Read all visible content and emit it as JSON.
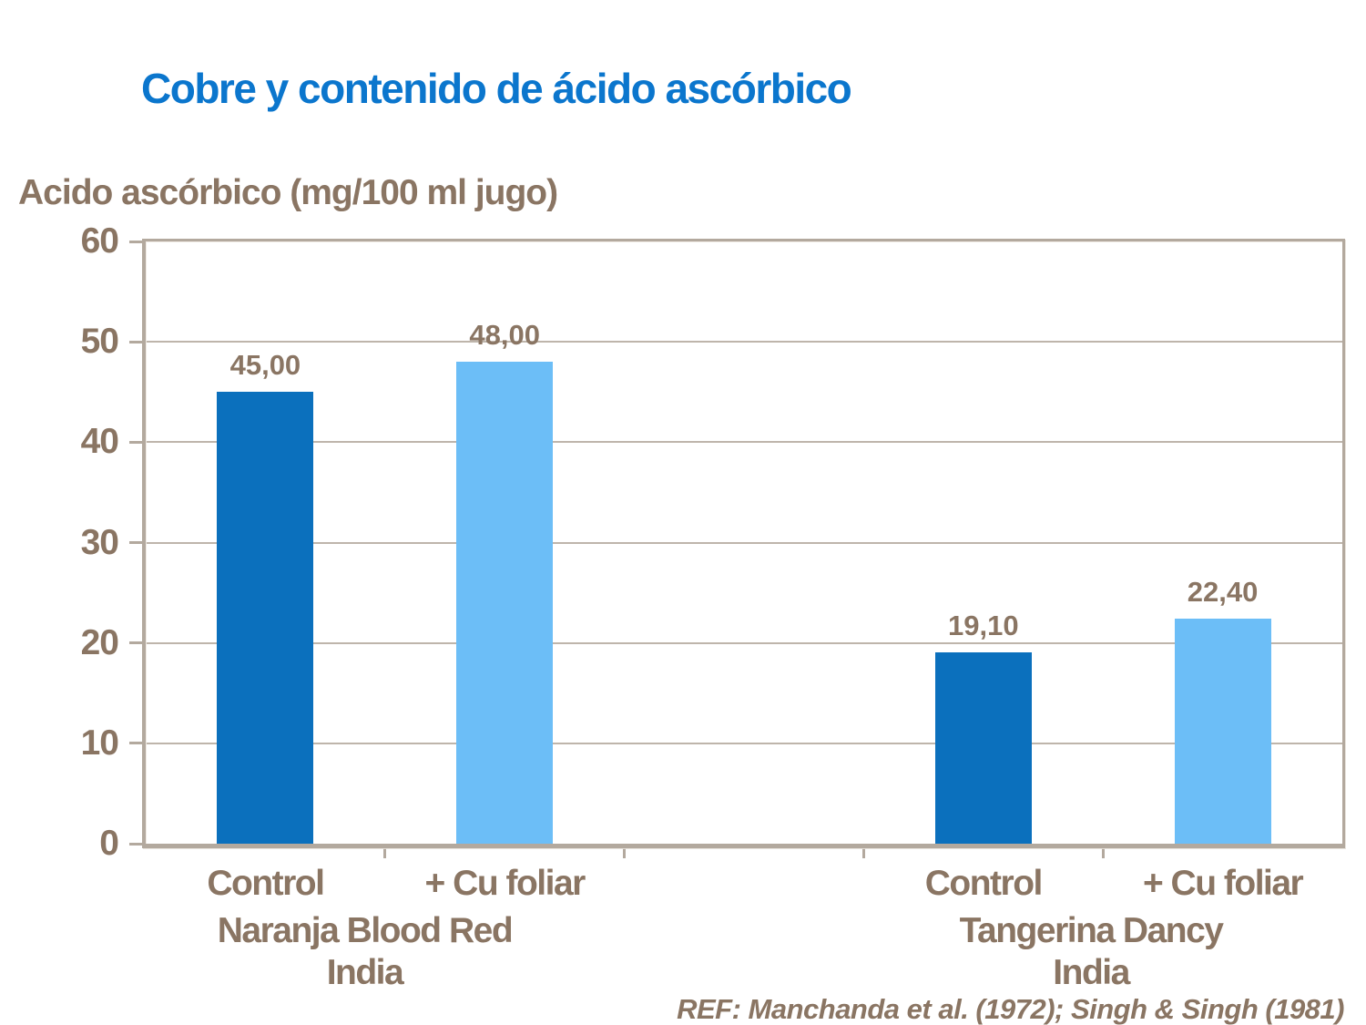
{
  "slide": {
    "title": "Cobre y contenido de ácido ascórbico",
    "reference": "REF: Manchanda et al. (1972); Singh & Singh (1981)"
  },
  "colors": {
    "title_blue": "#0b76cd",
    "text_brown": "#8a7563",
    "bar_dark_blue": "#0b70bd",
    "bar_light_blue": "#6cbef7",
    "gridline": "#beb5ab",
    "frame": "#b3a99e",
    "background": "#ffffff"
  },
  "chart_data": {
    "type": "bar",
    "title": "Cobre y contenido de ácido ascórbico",
    "xlabel": "",
    "ylabel": "Acido ascórbico (mg/100 ml jugo)",
    "ylim": [
      0,
      60
    ],
    "yticks": [
      0,
      10,
      20,
      30,
      40,
      50,
      60
    ],
    "grid": true,
    "legend": false,
    "n_slots": 5,
    "bars": [
      {
        "slot": 0,
        "category": "Control",
        "group": "Naranja Blood Red India",
        "value": 45.0,
        "label": "45,00",
        "color": "dark"
      },
      {
        "slot": 1,
        "category": "+ Cu foliar",
        "group": "Naranja Blood Red India",
        "value": 48.0,
        "label": "48,00",
        "color": "light"
      },
      {
        "slot": 3,
        "category": "Control",
        "group": "Tangerina Dancy India",
        "value": 19.1,
        "label": "19,10",
        "color": "dark"
      },
      {
        "slot": 4,
        "category": "+ Cu foliar",
        "group": "Tangerina Dancy India",
        "value": 22.4,
        "label": "22,40",
        "color": "light"
      }
    ],
    "groups": [
      {
        "line1": "Naranja Blood Red",
        "line2": "India",
        "center_frac": 0.183
      },
      {
        "line1": "Tangerina Dancy",
        "line2": "India",
        "center_frac": 0.79
      }
    ]
  }
}
